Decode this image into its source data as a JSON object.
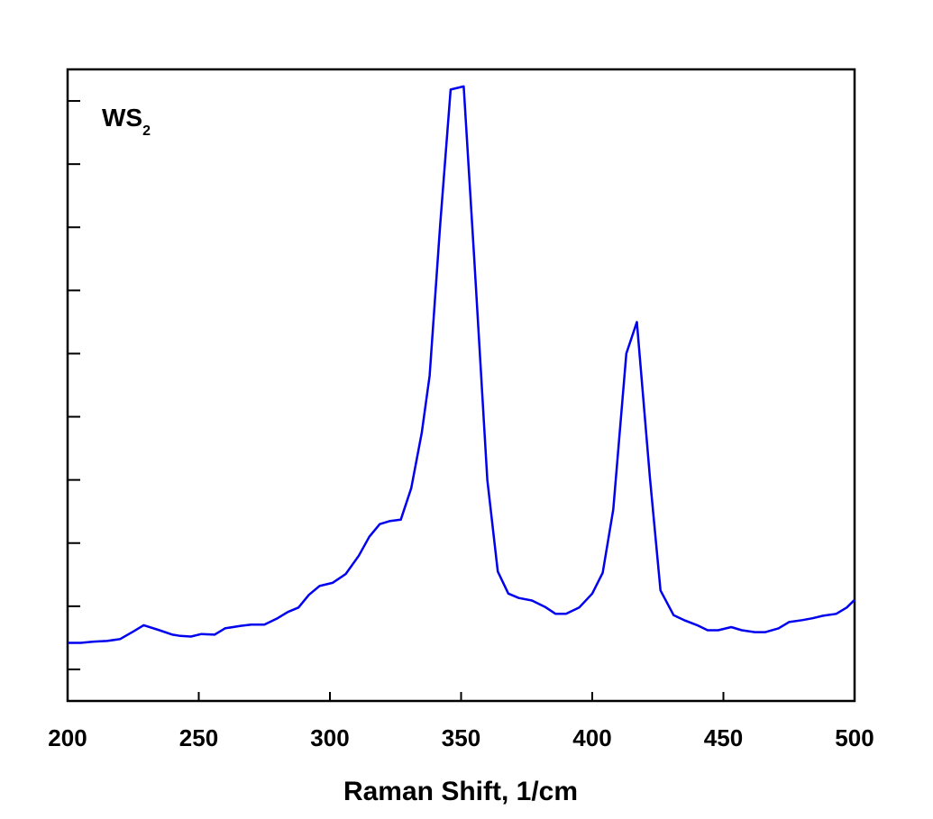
{
  "chart_data": {
    "type": "line",
    "title": "",
    "annotation": {
      "text": "WS",
      "subscript": "2"
    },
    "xlabel": "Raman Shift, 1/cm",
    "ylabel": "",
    "xlim": [
      200,
      500
    ],
    "ylim": [
      0,
      100
    ],
    "xticks": [
      200,
      250,
      300,
      350,
      400,
      450,
      500
    ],
    "xtick_labels": [
      "200",
      "250",
      "300",
      "350",
      "400",
      "450",
      "500"
    ],
    "yticks": [
      5,
      15,
      25,
      35,
      45,
      55,
      65,
      75,
      85,
      95
    ],
    "grid": false,
    "line_color": "#0000ee",
    "series": [
      {
        "x": [
          200,
          205,
          210,
          215,
          220,
          225,
          229,
          235,
          240,
          243,
          247,
          251,
          256,
          260,
          266,
          270,
          275,
          280,
          284,
          288,
          292,
          296,
          301,
          306,
          311,
          315,
          319,
          323,
          327,
          331,
          335,
          338,
          342,
          346,
          351,
          355,
          360,
          364,
          368,
          372,
          377,
          382,
          386,
          390,
          395,
          400,
          404,
          408,
          413,
          417,
          422,
          426,
          431,
          435,
          440,
          444,
          448,
          453,
          457,
          462,
          466,
          471,
          475,
          480,
          484,
          488,
          493,
          497,
          500
        ],
        "y": [
          9.2,
          9.2,
          9.4,
          9.5,
          9.8,
          11,
          12,
          11.2,
          10.5,
          10.3,
          10.2,
          10.6,
          10.5,
          11.5,
          11.9,
          12.1,
          12.1,
          13.1,
          14.1,
          14.8,
          16.8,
          18.2,
          18.7,
          20.1,
          23,
          26,
          28,
          28.5,
          28.7,
          33.7,
          42.5,
          51.5,
          75.2,
          96.8,
          97.3,
          70,
          35,
          20.5,
          17,
          16.3,
          15.9,
          14.9,
          13.8,
          13.8,
          14.8,
          17,
          20.3,
          30.3,
          55,
          60,
          35.3,
          17.5,
          13.6,
          12.8,
          12,
          11.2,
          11.2,
          11.7,
          11.2,
          10.9,
          10.9,
          11.5,
          12.5,
          12.8,
          13.1,
          13.5,
          13.8,
          14.8,
          16
        ]
      }
    ]
  }
}
